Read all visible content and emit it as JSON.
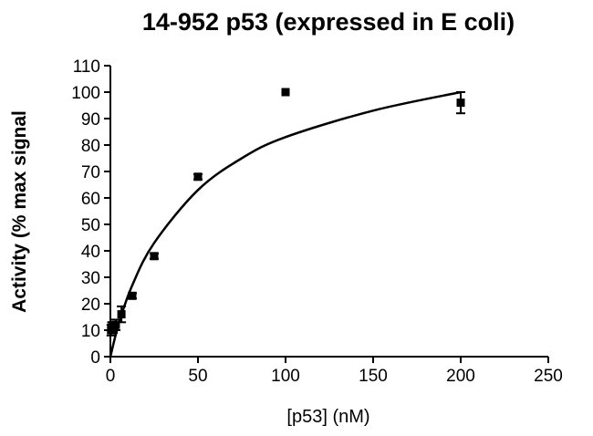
{
  "chart_data": {
    "type": "scatter",
    "title": "14-952 p53 (expressed in E coli)",
    "xlabel": "[p53] (nM)",
    "ylabel": "Activity (% max signal",
    "xlim": [
      0,
      250
    ],
    "ylim": [
      0,
      110
    ],
    "x_ticks": [
      0,
      50,
      100,
      150,
      200,
      250
    ],
    "y_ticks": [
      0,
      10,
      20,
      30,
      40,
      50,
      60,
      70,
      80,
      90,
      100,
      110
    ],
    "grid": false,
    "legend": "none",
    "series": [
      {
        "marker": "square",
        "points": [
          {
            "x": 0.4,
            "y": 10,
            "err": 2
          },
          {
            "x": 0.8,
            "y": 11,
            "err": 2
          },
          {
            "x": 1.6,
            "y": 11,
            "err": 2
          },
          {
            "x": 3.1,
            "y": 12,
            "err": 2
          },
          {
            "x": 6.3,
            "y": 16,
            "err": 3
          },
          {
            "x": 12.5,
            "y": 23,
            "err": 1
          },
          {
            "x": 25,
            "y": 38,
            "err": 1
          },
          {
            "x": 50,
            "y": 68,
            "err": 1
          },
          {
            "x": 100,
            "y": 100,
            "err": 0
          },
          {
            "x": 200,
            "y": 96,
            "err": 4
          }
        ]
      }
    ],
    "fit_curve": {
      "model": "hyperbolic",
      "points": [
        {
          "x": 0,
          "y": 0
        },
        {
          "x": 5,
          "y": 13
        },
        {
          "x": 12.5,
          "y": 27
        },
        {
          "x": 25,
          "y": 43
        },
        {
          "x": 50,
          "y": 63
        },
        {
          "x": 75,
          "y": 75
        },
        {
          "x": 100,
          "y": 83
        },
        {
          "x": 150,
          "y": 93
        },
        {
          "x": 200,
          "y": 100
        }
      ]
    }
  }
}
